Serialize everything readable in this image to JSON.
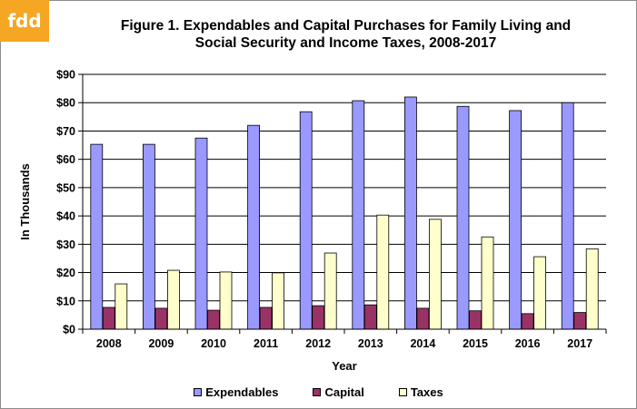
{
  "logo": "fdd",
  "chart_data": {
    "type": "bar",
    "title_line1": "Figure 1. Expendables and Capital Purchases for Family Living and",
    "title_line2": "Social Security and Income Taxes, 2008-2017",
    "xlabel": "Year",
    "ylabel": "In Thousands",
    "ylim": [
      0,
      90
    ],
    "yticks": [
      "$0",
      "$10",
      "$20",
      "$30",
      "$40",
      "$50",
      "$60",
      "$70",
      "$80",
      "$90"
    ],
    "grid": true,
    "legend_position": "bottom",
    "categories": [
      "2008",
      "2009",
      "2010",
      "2011",
      "2012",
      "2013",
      "2014",
      "2015",
      "2016",
      "2017"
    ],
    "series": [
      {
        "name": "Expendables",
        "color": "#9999ff",
        "values": [
          65.3,
          65.3,
          67.5,
          72,
          76.8,
          80.7,
          82,
          78.7,
          77.2,
          80
        ]
      },
      {
        "name": "Capital",
        "color": "#993366",
        "values": [
          7.7,
          7.4,
          6.7,
          7.7,
          8.3,
          8.6,
          7.4,
          6.5,
          5.5,
          5.9
        ]
      },
      {
        "name": "Taxes",
        "color": "#ffffcc",
        "values": [
          16,
          20.8,
          20.2,
          19.9,
          26.9,
          40.3,
          38.8,
          32.6,
          25.6,
          28.4
        ]
      }
    ]
  }
}
